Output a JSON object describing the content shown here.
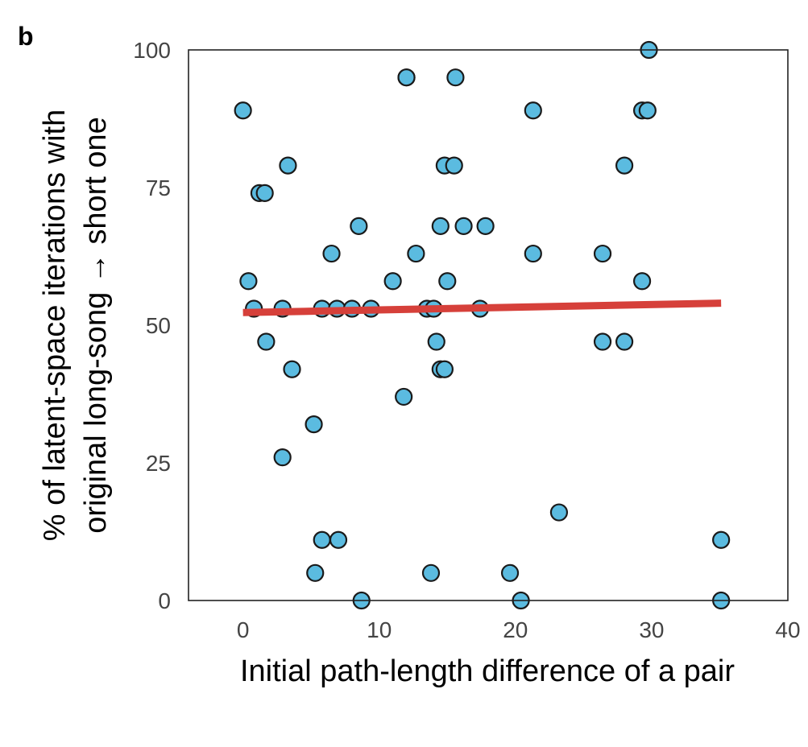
{
  "figure": {
    "panel_label": "b"
  },
  "chart_data": {
    "type": "scatter",
    "xlabel": "Initial path-length difference of a pair",
    "ylabel_lines": [
      "% of latent-space iterations with",
      "original long-song → short one"
    ],
    "xlim": [
      -4,
      40
    ],
    "ylim": [
      0,
      100
    ],
    "x_ticks": [
      0,
      10,
      20,
      30,
      40
    ],
    "y_ticks": [
      0,
      25,
      50,
      75,
      100
    ],
    "x_tick_labels": [
      "0",
      "10",
      "20",
      "30",
      "40"
    ],
    "y_tick_labels": [
      "0",
      "25",
      "50",
      "75",
      "100"
    ],
    "grid": false,
    "point_color": "#5bbbe0",
    "point_edge_color": "#1a1a1a",
    "trend_color": "#d6403a",
    "points": [
      {
        "x": 0.0,
        "y": 89
      },
      {
        "x": 0.4,
        "y": 58
      },
      {
        "x": 0.8,
        "y": 53
      },
      {
        "x": 1.2,
        "y": 74
      },
      {
        "x": 1.6,
        "y": 74
      },
      {
        "x": 1.7,
        "y": 47
      },
      {
        "x": 2.9,
        "y": 53
      },
      {
        "x": 2.9,
        "y": 26
      },
      {
        "x": 3.3,
        "y": 79
      },
      {
        "x": 3.6,
        "y": 42
      },
      {
        "x": 5.2,
        "y": 32
      },
      {
        "x": 5.3,
        "y": 5
      },
      {
        "x": 5.8,
        "y": 11
      },
      {
        "x": 5.8,
        "y": 53
      },
      {
        "x": 6.5,
        "y": 63
      },
      {
        "x": 6.9,
        "y": 53
      },
      {
        "x": 7.0,
        "y": 11
      },
      {
        "x": 8.0,
        "y": 53
      },
      {
        "x": 8.5,
        "y": 68
      },
      {
        "x": 8.7,
        "y": 0
      },
      {
        "x": 9.4,
        "y": 53
      },
      {
        "x": 11.0,
        "y": 58
      },
      {
        "x": 11.8,
        "y": 37
      },
      {
        "x": 12.0,
        "y": 95
      },
      {
        "x": 12.0,
        "y": 95
      },
      {
        "x": 12.7,
        "y": 63
      },
      {
        "x": 13.5,
        "y": 53
      },
      {
        "x": 13.8,
        "y": 5
      },
      {
        "x": 14.0,
        "y": 53
      },
      {
        "x": 14.2,
        "y": 47
      },
      {
        "x": 14.5,
        "y": 68
      },
      {
        "x": 14.5,
        "y": 42
      },
      {
        "x": 14.8,
        "y": 42
      },
      {
        "x": 14.8,
        "y": 79
      },
      {
        "x": 15.0,
        "y": 58
      },
      {
        "x": 15.5,
        "y": 79
      },
      {
        "x": 15.6,
        "y": 95
      },
      {
        "x": 16.2,
        "y": 68
      },
      {
        "x": 17.4,
        "y": 53
      },
      {
        "x": 17.8,
        "y": 68
      },
      {
        "x": 19.6,
        "y": 5
      },
      {
        "x": 20.4,
        "y": 0
      },
      {
        "x": 21.3,
        "y": 89
      },
      {
        "x": 21.3,
        "y": 63
      },
      {
        "x": 23.2,
        "y": 16
      },
      {
        "x": 26.4,
        "y": 63
      },
      {
        "x": 26.4,
        "y": 47
      },
      {
        "x": 28.0,
        "y": 79
      },
      {
        "x": 28.0,
        "y": 47
      },
      {
        "x": 29.3,
        "y": 89
      },
      {
        "x": 29.3,
        "y": 58
      },
      {
        "x": 29.7,
        "y": 89
      },
      {
        "x": 29.8,
        "y": 100
      },
      {
        "x": 35.1,
        "y": 11
      },
      {
        "x": 35.1,
        "y": 0
      }
    ],
    "trend_line": {
      "x": [
        0,
        35.1
      ],
      "y": [
        52.3,
        54.0
      ]
    }
  }
}
